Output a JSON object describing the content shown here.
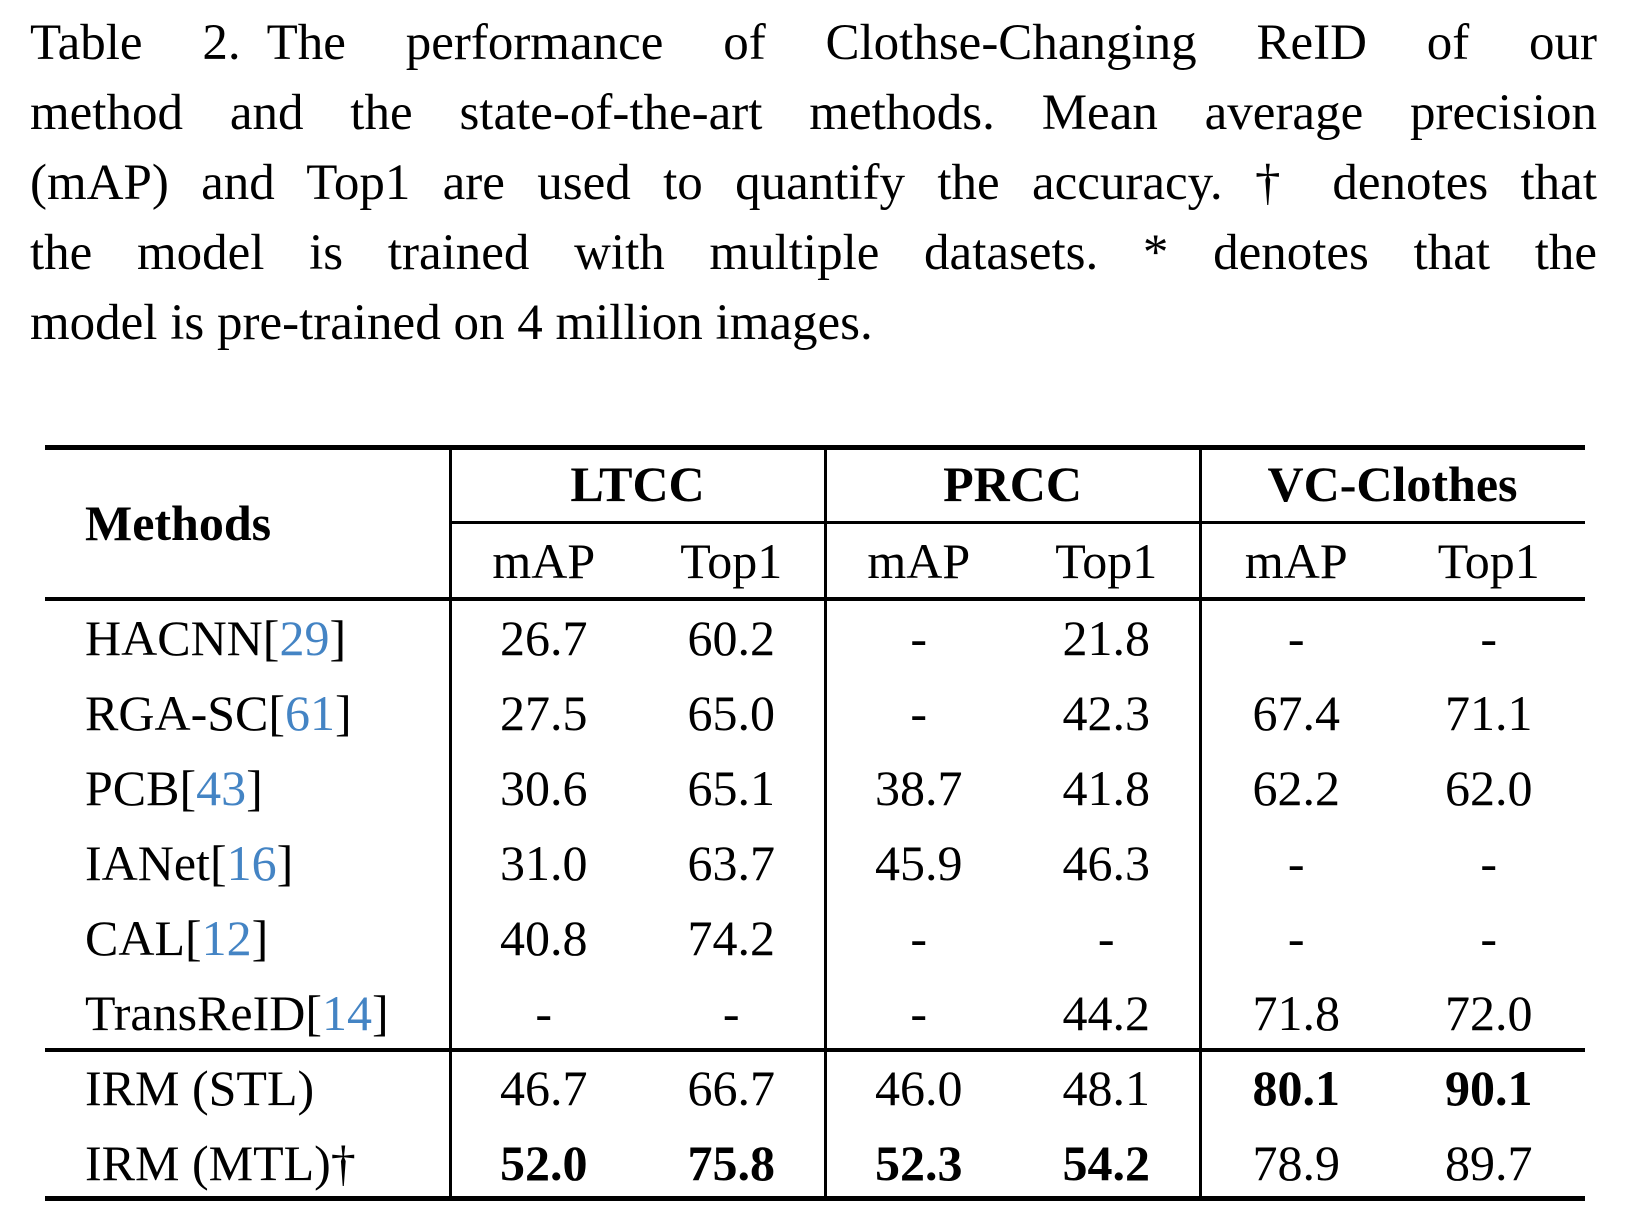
{
  "caption": {
    "label": "Table 2.",
    "lines": [
      "The performance of Clothse-Changing ReID of our",
      "method and the state-of-the-art methods. Mean average precision",
      "(mAP) and Top1 are used to quantify the accuracy. † denotes that",
      "the model is trained with multiple datasets.  * denotes that the",
      "model is pre-trained on 4 million images."
    ]
  },
  "table": {
    "corner_header": "Methods",
    "groups": [
      {
        "label": "LTCC"
      },
      {
        "label": "PRCC"
      },
      {
        "label": "VC-Clothes"
      }
    ],
    "metric_headers": [
      "mAP",
      "Top1"
    ],
    "rows": [
      {
        "method": "HACNN",
        "cite": "29",
        "section": "sota",
        "values": [
          "26.7",
          "60.2",
          "-",
          "21.8",
          "-",
          "-"
        ],
        "bold": [
          false,
          false,
          false,
          false,
          false,
          false
        ]
      },
      {
        "method": "RGA-SC",
        "cite": "61",
        "section": "sota",
        "values": [
          "27.5",
          "65.0",
          "-",
          "42.3",
          "67.4",
          "71.1"
        ],
        "bold": [
          false,
          false,
          false,
          false,
          false,
          false
        ]
      },
      {
        "method": "PCB",
        "cite": "43",
        "section": "sota",
        "values": [
          "30.6",
          "65.1",
          "38.7",
          "41.8",
          "62.2",
          "62.0"
        ],
        "bold": [
          false,
          false,
          false,
          false,
          false,
          false
        ]
      },
      {
        "method": "IANet",
        "cite": "16",
        "section": "sota",
        "values": [
          "31.0",
          "63.7",
          "45.9",
          "46.3",
          "-",
          "-"
        ],
        "bold": [
          false,
          false,
          false,
          false,
          false,
          false
        ]
      },
      {
        "method": "CAL",
        "cite": "12",
        "section": "sota",
        "values": [
          "40.8",
          "74.2",
          "-",
          "-",
          "-",
          "-"
        ],
        "bold": [
          false,
          false,
          false,
          false,
          false,
          false
        ]
      },
      {
        "method": "TransReID",
        "cite": "14",
        "section": "sota",
        "values": [
          "-",
          "-",
          "-",
          "44.2",
          "71.8",
          "72.0"
        ],
        "bold": [
          false,
          false,
          false,
          false,
          false,
          false
        ]
      },
      {
        "method": "IRM (STL)",
        "cite": null,
        "section": "ours",
        "values": [
          "46.7",
          "66.7",
          "46.0",
          "48.1",
          "80.1",
          "90.1"
        ],
        "bold": [
          false,
          false,
          false,
          false,
          true,
          true
        ]
      },
      {
        "method": "IRM (MTL)†",
        "cite": null,
        "section": "ours",
        "values": [
          "52.0",
          "75.8",
          "52.3",
          "54.2",
          "78.9",
          "89.7"
        ],
        "bold": [
          true,
          true,
          true,
          true,
          false,
          false
        ]
      }
    ]
  },
  "colors": {
    "background": "#ffffff",
    "text": "#000000",
    "rule": "#000000",
    "citation_blue": "#4484c4"
  }
}
